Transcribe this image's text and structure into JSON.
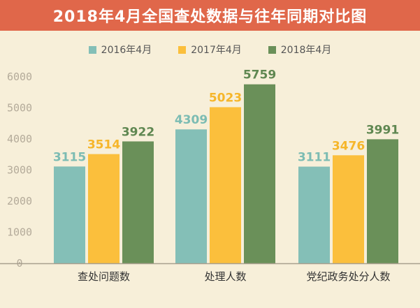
{
  "header": {
    "title": "2018年4月全国查处数据与往年同期对比图"
  },
  "colors": {
    "banner": "#e0674a",
    "background": "#f7efd9",
    "axis": "#a89f8e"
  },
  "chart_data": {
    "type": "bar",
    "title": "2018年4月全国查处数据与往年同期对比图",
    "categories": [
      "查处问题数",
      "处理人数",
      "党纪政务处分人数"
    ],
    "series": [
      {
        "name": "2016年4月",
        "values": [
          3115,
          4309,
          3111
        ],
        "color": "#84bfb7",
        "label_color": "#7cbcb3"
      },
      {
        "name": "2017年4月",
        "values": [
          3514,
          5023,
          3476
        ],
        "color": "#fbbf3c",
        "label_color": "#f6b62a"
      },
      {
        "name": "2018年4月",
        "values": [
          3922,
          5759,
          3991
        ],
        "color": "#6a9059",
        "label_color": "#5f8751"
      }
    ],
    "ylim": [
      0,
      6000
    ],
    "yticks": [
      "0",
      "1000",
      "2000",
      "3000",
      "4000",
      "5000",
      "6000"
    ],
    "xlabel": "",
    "ylabel": "",
    "grid": false,
    "legend_position": "top"
  }
}
